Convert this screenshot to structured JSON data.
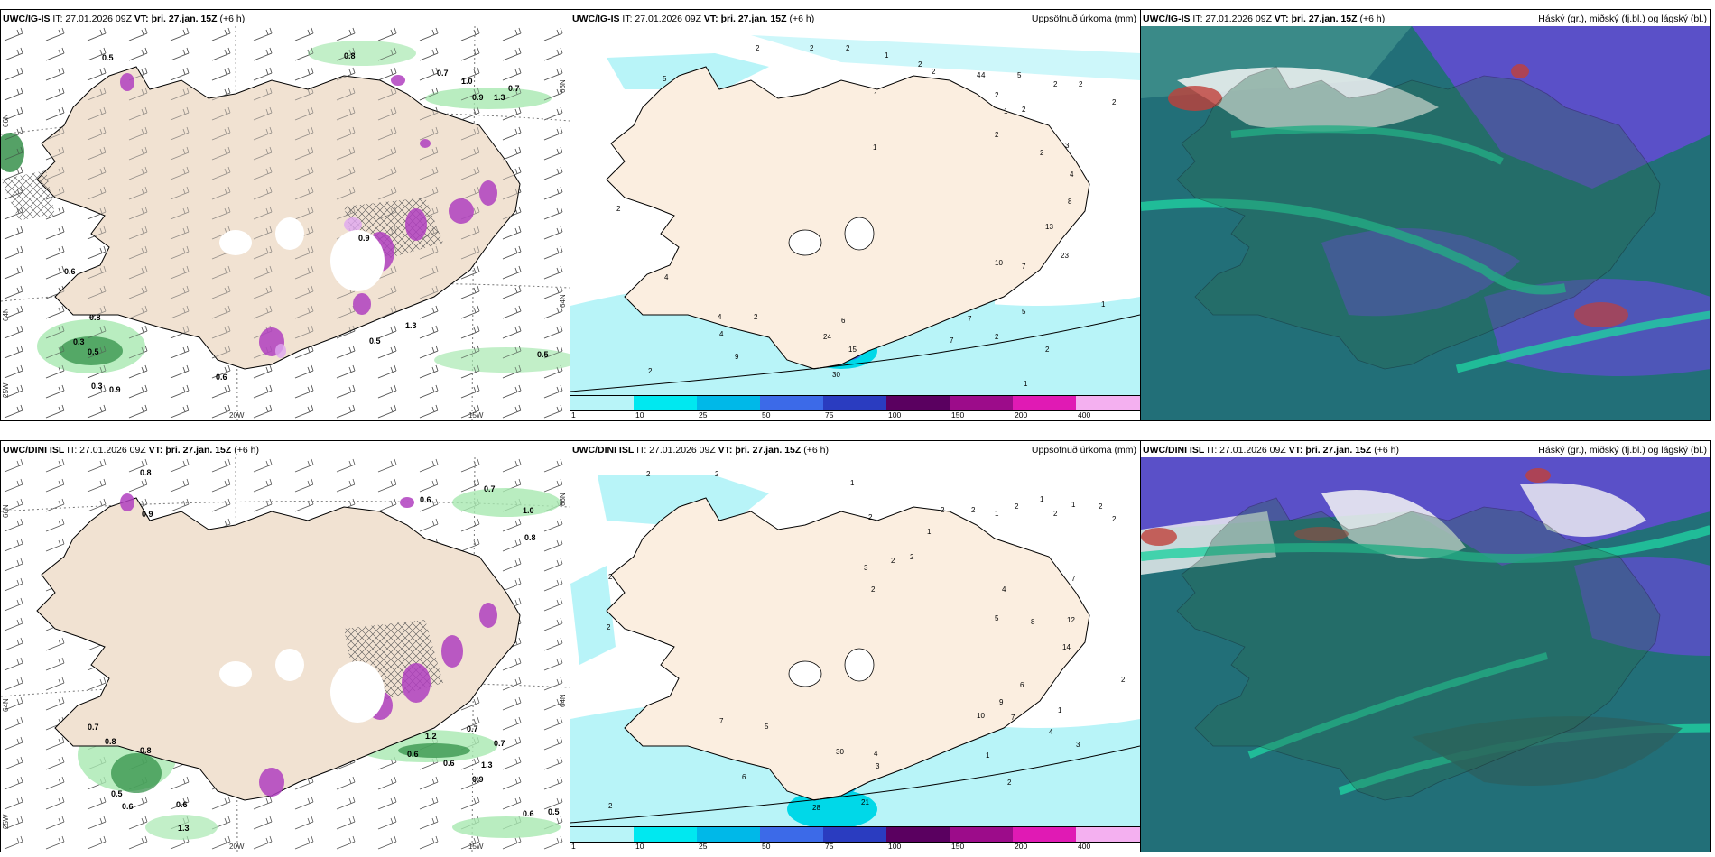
{
  "rows": [
    {
      "model": "UWC/IG-IS",
      "issue": "IT: 27.01.2026 09Z",
      "valid": "VT: þri. 27.jan. 15Z",
      "lead": "(+6 h)",
      "snow_values": [
        "0.5",
        "0.8",
        "0.7",
        "1.0",
        "0.7",
        "0.9",
        "1.3",
        "0.6",
        "0.5",
        "0.6",
        "1.3",
        "0.5",
        "0.3",
        "0.5",
        "0.3",
        "0.9",
        "0.9",
        "0.8"
      ],
      "precip_values": [
        "2",
        "2",
        "2",
        "1",
        "2",
        "2",
        "5",
        "4",
        "2",
        "2",
        "2",
        "1",
        "1",
        "4",
        "5",
        "2",
        "1",
        "2",
        "2",
        "2",
        "3",
        "4",
        "8",
        "13",
        "23",
        "10",
        "7",
        "2",
        "4",
        "6",
        "2",
        "4",
        "9",
        "24",
        "15",
        "30",
        "7",
        "5",
        "1",
        "2",
        "1",
        "2",
        "7",
        "4",
        "2"
      ]
    },
    {
      "model": "UWC/DINI ISL",
      "issue": "IT: 27.01.2026 09Z",
      "valid": "VT: þri. 27.jan. 15Z",
      "lead": "(+6 h)",
      "snow_values": [
        "0.8",
        "0.9",
        "0.6",
        "0.7",
        "1.0",
        "0.8",
        "0.7",
        "0.8",
        "0.8",
        "1.2",
        "0.6",
        "0.6",
        "0.7",
        "0.7",
        "1.3",
        "0.9",
        "0.5",
        "0.6",
        "0.6",
        "1.3",
        "0.6",
        "0.5"
      ],
      "precip_values": [
        "2",
        "2",
        "1",
        "2",
        "2",
        "1",
        "2",
        "1",
        "2",
        "1",
        "2",
        "2",
        "2",
        "3",
        "2",
        "2",
        "2",
        "1",
        "7",
        "12",
        "14",
        "8",
        "4",
        "5",
        "10",
        "9",
        "7",
        "6",
        "4",
        "3",
        "2",
        "1",
        "7",
        "6",
        "5",
        "28",
        "21",
        "4",
        "3",
        "2",
        "2",
        "30",
        "2",
        "1",
        "2"
      ]
    }
  ],
  "panels": {
    "precip_title": "Uppsöfnuð úrkoma (mm)",
    "cloud_title": "Háský (gr.), miðský (fj.bl.) og lágský (bl.)"
  },
  "axes": {
    "lon_left": "20W",
    "lon_right": "15W",
    "lat_top": "66N",
    "lat_mid": "64N",
    "lon_edge": "25W"
  },
  "legend": {
    "labels": [
      "1",
      "10",
      "25",
      "50",
      "75",
      "100",
      "150",
      "200",
      "400"
    ],
    "colors": [
      "#b8f4f8",
      "#00e8f0",
      "#00b8e8",
      "#3c6ae8",
      "#2a3cc0",
      "#5a0060",
      "#9c0c8a",
      "#e01ab4",
      "#f4b0f0"
    ]
  },
  "colors": {
    "land": "#f5e8da",
    "coast": "#000000",
    "sea_cloud_dark": "#1f6f78",
    "cloud_purple": "#5a50c8",
    "cloud_green": "#20d0a0",
    "cloud_red": "#c0403a"
  }
}
